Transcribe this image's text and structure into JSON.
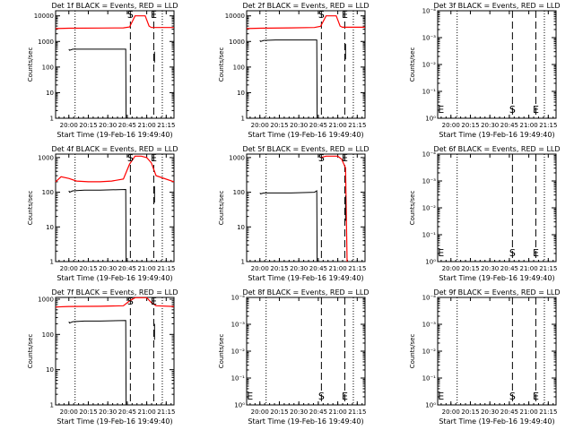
{
  "chart_data": [
    {
      "type": "line",
      "title": "Det 1f BLACK = Events, RED = LLD",
      "xlabel": "Start Time (19-Feb-16 19:49:40)",
      "ylabel": "Counts/sec",
      "scale": "log",
      "y_ticks": [
        "1",
        "10",
        "100",
        "1000",
        "10000"
      ],
      "ylim_log": [
        0,
        4.2
      ],
      "x_ticks": [
        "20:00",
        "20:15",
        "20:30",
        "20:45",
        "21:00",
        "21:15"
      ],
      "xlim": [
        19.83,
        21.35
      ],
      "events": {
        "x": [
          20.0,
          20.01,
          20.05,
          20.2,
          20.4,
          20.73,
          20.735
        ],
        "y": [
          500,
          450,
          500,
          500,
          500,
          500,
          0
        ]
      },
      "lld": {
        "x": [
          19.83,
          20.0,
          20.4,
          20.7,
          20.78,
          20.85,
          20.88,
          20.93,
          20.98,
          21.03,
          21.06,
          21.35
        ],
        "y": [
          3200,
          3300,
          3350,
          3400,
          3700,
          10000,
          10000,
          10000,
          10000,
          4000,
          3500,
          3500
        ]
      },
      "events_tail": {
        "x": [
          21.1,
          21.1
        ],
        "y": [
          150,
          400
        ]
      },
      "markers": [
        {
          "label": "S",
          "x": 20.79
        },
        {
          "label": "E",
          "x": 21.09
        }
      ],
      "dashed": [
        20.79,
        21.09
      ],
      "dotted": [
        20.08,
        21.2
      ]
    },
    {
      "type": "line",
      "title": "Det 2f BLACK = Events, RED = LLD",
      "xlabel": "Start Time (19-Feb-16 19:49:40)",
      "ylabel": "Counts/sec",
      "scale": "log",
      "y_ticks": [
        "1",
        "10",
        "100",
        "1000",
        "10000"
      ],
      "ylim_log": [
        0,
        4.2
      ],
      "x_ticks": [
        "20:00",
        "20:15",
        "20:30",
        "20:45",
        "21:00",
        "21:15"
      ],
      "xlim": [
        19.83,
        21.35
      ],
      "events": {
        "x": [
          20.0,
          20.01,
          20.05,
          20.2,
          20.4,
          20.73,
          20.735
        ],
        "y": [
          1100,
          1000,
          1100,
          1150,
          1150,
          1150,
          0
        ]
      },
      "lld": {
        "x": [
          19.83,
          20.0,
          20.4,
          20.7,
          20.78,
          20.85,
          20.88,
          20.93,
          20.98,
          21.03,
          21.06,
          21.35
        ],
        "y": [
          3200,
          3300,
          3400,
          3500,
          3900,
          10000,
          10000,
          10000,
          10000,
          4000,
          3600,
          3600
        ]
      },
      "events_tail": {
        "x": [
          21.1,
          21.1
        ],
        "y": [
          200,
          800
        ]
      },
      "markers": [
        {
          "label": "S",
          "x": 20.79
        },
        {
          "label": "E",
          "x": 21.09
        }
      ],
      "dashed": [
        20.79,
        21.09
      ],
      "dotted": [
        20.08,
        21.2
      ]
    },
    {
      "type": "line",
      "title": "Det 3f BLACK = Events, RED = LLD",
      "xlabel": "Start Time (19-Feb-16 19:49:40)",
      "ylabel": "Counts/sec",
      "scale": "log",
      "y_ticks": [
        "10⁰",
        "10⁻¹",
        "10⁻²",
        "10⁻³",
        "10⁻⁴"
      ],
      "ylim_log": [
        0,
        4
      ],
      "x_ticks": [
        "20:00",
        "20:15",
        "20:30",
        "20:45",
        "21:00",
        "21:15"
      ],
      "xlim": [
        19.83,
        21.35
      ],
      "events": null,
      "lld": null,
      "events_tail": null,
      "markers": [
        {
          "label": "E",
          "x": 19.85
        },
        {
          "label": "S",
          "x": 20.79
        },
        {
          "label": "E",
          "x": 21.09
        }
      ],
      "dashed": [
        20.79,
        21.09
      ],
      "dotted": [
        20.08,
        21.2
      ]
    },
    {
      "type": "line",
      "title": "Det 4f BLACK = Events, RED = LLD",
      "xlabel": "Start Time (19-Feb-16 19:49:40)",
      "ylabel": "Counts/sec",
      "scale": "log",
      "y_ticks": [
        "1",
        "10",
        "100",
        "1000"
      ],
      "ylim_log": [
        0,
        3.1
      ],
      "x_ticks": [
        "20:00",
        "20:15",
        "20:30",
        "20:45",
        "21:00",
        "21:15"
      ],
      "xlim": [
        19.83,
        21.35
      ],
      "events": {
        "x": [
          20.0,
          20.01,
          20.05,
          20.2,
          20.4,
          20.73,
          20.735
        ],
        "y": [
          110,
          100,
          110,
          115,
          115,
          120,
          0
        ]
      },
      "lld": {
        "x": [
          19.83,
          19.9,
          20.0,
          20.1,
          20.25,
          20.4,
          20.55,
          20.7,
          20.78,
          20.85,
          20.93,
          21.0,
          21.06,
          21.12,
          21.2,
          21.35
        ],
        "y": [
          200,
          280,
          250,
          210,
          200,
          200,
          210,
          240,
          650,
          1100,
          1100,
          1000,
          700,
          300,
          260,
          200
        ]
      },
      "events_tail": {
        "x": [
          21.1,
          21.1
        ],
        "y": [
          50,
          150
        ]
      },
      "markers": [
        {
          "label": "S",
          "x": 20.79
        },
        {
          "label": "E",
          "x": 21.09
        }
      ],
      "dashed": [
        20.79,
        21.09
      ],
      "dotted": [
        20.08,
        21.2
      ]
    },
    {
      "type": "line",
      "title": "Det 5f BLACK = Events, RED = LLD",
      "xlabel": "Start Time (19-Feb-16 19:49:40)",
      "ylabel": "Counts/sec",
      "scale": "log",
      "y_ticks": [
        "1",
        "10",
        "100",
        "1000"
      ],
      "ylim_log": [
        0,
        3.1
      ],
      "x_ticks": [
        "20:00",
        "20:15",
        "20:30",
        "20:45",
        "21:00",
        "21:15"
      ],
      "xlim": [
        19.83,
        21.35
      ],
      "events": {
        "x": [
          20.0,
          20.01,
          20.05,
          20.2,
          20.4,
          20.7,
          20.73,
          20.735
        ],
        "y": [
          95,
          90,
          95,
          95,
          95,
          100,
          110,
          0
        ]
      },
      "lld": {
        "x": [
          20.78,
          20.85,
          20.93,
          21.0,
          21.05,
          21.1,
          21.12
        ],
        "y": [
          1000,
          1100,
          1100,
          1100,
          900,
          500,
          0
        ]
      },
      "events_tail": {
        "x": [
          21.1,
          21.1
        ],
        "y": [
          15,
          80
        ]
      },
      "markers": [
        {
          "label": "S",
          "x": 20.79
        },
        {
          "label": "E",
          "x": 21.09
        }
      ],
      "dashed": [
        20.79,
        21.09
      ],
      "dotted": [
        20.08,
        21.2
      ]
    },
    {
      "type": "line",
      "title": "Det 6f BLACK = Events, RED = LLD",
      "xlabel": "Start Time (19-Feb-16 19:49:40)",
      "ylabel": "Counts/sec",
      "scale": "log",
      "y_ticks": [
        "10⁰",
        "10⁻¹",
        "10⁻²",
        "10⁻³",
        "10⁻⁴"
      ],
      "ylim_log": [
        0,
        4
      ],
      "x_ticks": [
        "20:00",
        "20:15",
        "20:30",
        "20:45",
        "21:00",
        "21:15"
      ],
      "xlim": [
        19.83,
        21.35
      ],
      "events": null,
      "lld": null,
      "events_tail": null,
      "markers": [
        {
          "label": "E",
          "x": 19.85
        },
        {
          "label": "S",
          "x": 20.79
        },
        {
          "label": "E",
          "x": 21.09
        }
      ],
      "dashed": [
        20.79,
        21.09
      ],
      "dotted": [
        20.08,
        21.2
      ]
    },
    {
      "type": "line",
      "title": "Det 7f BLACK = Events, RED = LLD",
      "xlabel": "Start Time (19-Feb-16 19:49:40)",
      "ylabel": "Counts/sec",
      "scale": "log",
      "y_ticks": [
        "1",
        "10",
        "100",
        "1000"
      ],
      "ylim_log": [
        0,
        3.05
      ],
      "x_ticks": [
        "20:00",
        "20:15",
        "20:30",
        "20:45",
        "21:00",
        "21:15"
      ],
      "xlim": [
        19.83,
        21.35
      ],
      "events": {
        "x": [
          20.0,
          20.01,
          20.05,
          20.2,
          20.4,
          20.73,
          20.735
        ],
        "y": [
          230,
          210,
          230,
          240,
          240,
          250,
          0
        ]
      },
      "lld": {
        "x": [
          19.83,
          20.0,
          20.4,
          20.7,
          20.78,
          20.85,
          20.93,
          21.0,
          21.06,
          21.12,
          21.35
        ],
        "y": [
          600,
          620,
          630,
          650,
          900,
          1100,
          1100,
          1100,
          800,
          650,
          620
        ]
      },
      "events_tail": {
        "x": [
          21.1,
          21.1
        ],
        "y": [
          70,
          200
        ]
      },
      "markers": [
        {
          "label": "S",
          "x": 20.79
        },
        {
          "label": "E",
          "x": 21.09
        }
      ],
      "dashed": [
        20.79,
        21.09
      ],
      "dotted": [
        20.08,
        21.2
      ]
    },
    {
      "type": "line",
      "title": "Det 8f BLACK = Events, RED = LLD",
      "xlabel": "Start Time (19-Feb-16 19:49:40)",
      "ylabel": "Counts/sec",
      "scale": "log",
      "y_ticks": [
        "10⁰",
        "10⁻¹",
        "10⁻²",
        "10⁻³",
        "10⁻⁴"
      ],
      "ylim_log": [
        0,
        4
      ],
      "x_ticks": [
        "20:00",
        "20:15",
        "20:30",
        "20:45",
        "21:00",
        "21:15"
      ],
      "xlim": [
        19.83,
        21.35
      ],
      "events": null,
      "lld": null,
      "events_tail": null,
      "markers": [
        {
          "label": "E",
          "x": 19.85
        },
        {
          "label": "S",
          "x": 20.79
        },
        {
          "label": "E",
          "x": 21.09
        }
      ],
      "dashed": [
        20.79,
        21.09
      ],
      "dotted": [
        20.08,
        21.2
      ]
    },
    {
      "type": "line",
      "title": "Det 9f BLACK = Events, RED = LLD",
      "xlabel": "Start Time (19-Feb-16 19:49:40)",
      "ylabel": "Counts/sec",
      "scale": "log",
      "y_ticks": [
        "10⁰",
        "10⁻¹",
        "10⁻²",
        "10⁻³",
        "10⁻⁴"
      ],
      "ylim_log": [
        0,
        4
      ],
      "x_ticks": [
        "20:00",
        "20:15",
        "20:30",
        "20:45",
        "21:00",
        "21:15"
      ],
      "xlim": [
        19.83,
        21.35
      ],
      "events": null,
      "lld": null,
      "events_tail": null,
      "markers": [
        {
          "label": "E",
          "x": 19.85
        },
        {
          "label": "S",
          "x": 20.79
        },
        {
          "label": "E",
          "x": 21.09
        }
      ],
      "dashed": [
        20.79,
        21.09
      ],
      "dotted": [
        20.08,
        21.2
      ]
    }
  ],
  "colors": {
    "events": "#000000",
    "lld": "#ff0000"
  }
}
